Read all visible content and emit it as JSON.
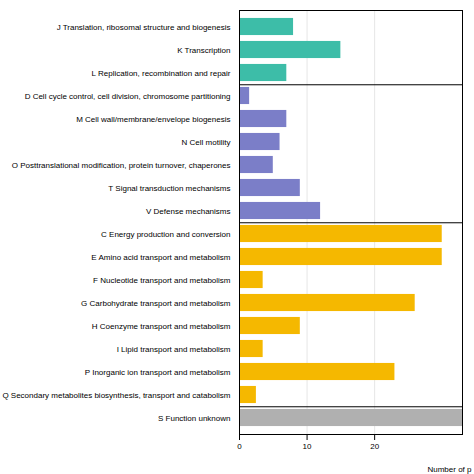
{
  "chart_data": {
    "type": "bar",
    "orientation": "horizontal",
    "categories": [
      "J Translation, ribosomal structure and biogenesis",
      "K Transcription",
      "L Replication, recombination and repair",
      "D Cell cycle control, cell division, chromosome partitioning",
      "M Cell wall/membrane/envelope biogenesis",
      "N Cell motility",
      "O Posttranslational modification, protein turnover, chaperones",
      "T Signal transduction mechanisms",
      "V Defense mechanisms",
      "C Energy production and conversion",
      "E Amino acid transport and metabolism",
      "F Nucleotide transport and metabolism",
      "G Carbohydrate transport and metabolism",
      "H Coenzyme transport and metabolism",
      "I Lipid transport and metabolism",
      "P Inorganic ion transport and metabolism",
      "Q Secondary metabolites biosynthesis, transport and catabolism",
      "S Function unknown"
    ],
    "values": [
      8,
      15,
      7,
      1.5,
      7,
      6,
      5,
      9,
      12,
      30,
      30,
      3.5,
      26,
      9,
      3.5,
      23,
      2.5,
      33
    ],
    "colors": [
      "#3dbda8",
      "#3dbda8",
      "#3dbda8",
      "#7b7ec8",
      "#7b7ec8",
      "#7b7ec8",
      "#7b7ec8",
      "#7b7ec8",
      "#7b7ec8",
      "#f5b800",
      "#f5b800",
      "#f5b800",
      "#f5b800",
      "#f5b800",
      "#f5b800",
      "#f5b800",
      "#f5b800",
      "#b0b0b0"
    ],
    "xlim": [
      0,
      33
    ],
    "xticks": [
      0,
      10,
      20
    ],
    "xlabel": "Number of p",
    "grid": true
  }
}
